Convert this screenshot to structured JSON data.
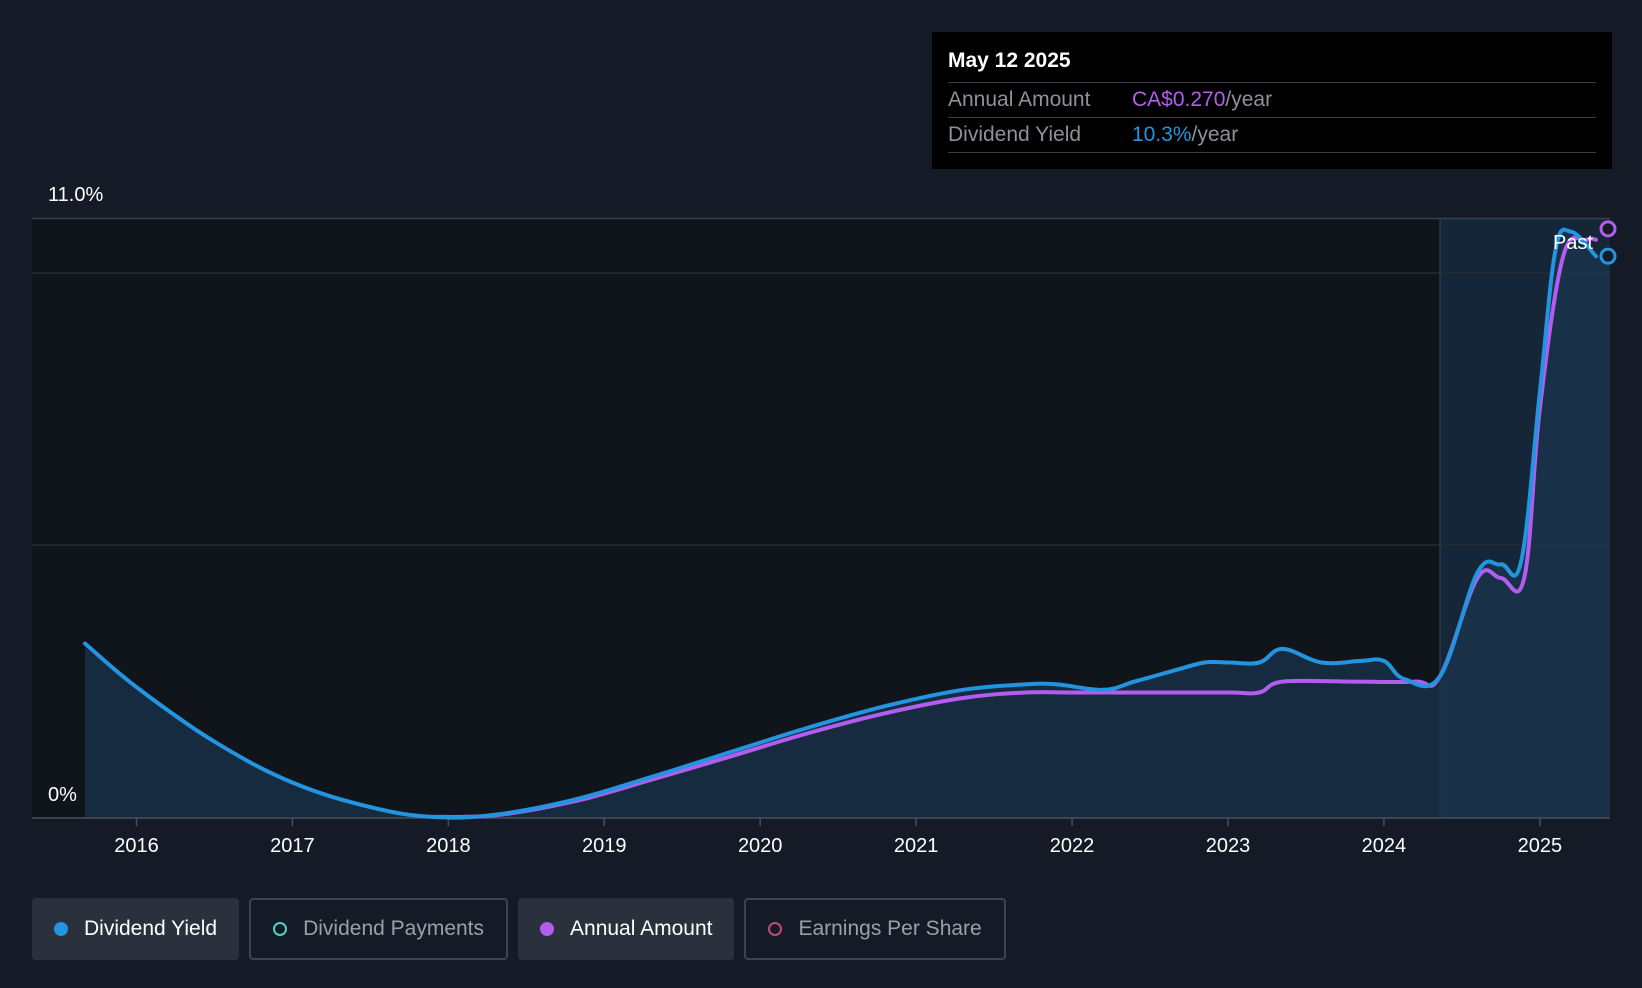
{
  "tooltip": {
    "date": "May 12 2025",
    "rows": [
      {
        "label": "Annual Amount",
        "value": "CA$0.270",
        "unit": "/year"
      },
      {
        "label": "Dividend Yield",
        "value": "10.3%",
        "unit": "/year"
      }
    ]
  },
  "legend": {
    "items": [
      {
        "label": "Dividend Yield",
        "color": "#2394df",
        "filled": true,
        "active": true
      },
      {
        "label": "Dividend Payments",
        "color": "#4fd1c5",
        "filled": false,
        "active": false
      },
      {
        "label": "Annual Amount",
        "color": "#b25dee",
        "filled": true,
        "active": true
      },
      {
        "label": "Earnings Per Share",
        "color": "#c0487a",
        "filled": false,
        "active": false
      }
    ]
  },
  "chart_data": {
    "type": "line",
    "y_top_label": "11.0%",
    "y_bottom_label": "0%",
    "past_label": "Past",
    "ylim": [
      0,
      11.0
    ],
    "xlim": [
      2015.33,
      2025.45
    ],
    "x_ticks": [
      "2016",
      "2017",
      "2018",
      "2019",
      "2020",
      "2021",
      "2022",
      "2023",
      "2024",
      "2025"
    ],
    "x_tick_values": [
      2016,
      2017,
      2018,
      2019,
      2020,
      2021,
      2022,
      2023,
      2024,
      2025
    ],
    "past_region_start": 2024.36,
    "colors": {
      "yield": "#2394df",
      "amount": "#b25dee",
      "area": "#1a3550"
    },
    "series": [
      {
        "name": "Dividend Yield",
        "x": [
          2015.67,
          2016.0,
          2016.5,
          2017.0,
          2017.5,
          2017.9,
          2018.3,
          2018.8,
          2019.3,
          2019.8,
          2020.3,
          2020.8,
          2021.3,
          2021.7,
          2021.9,
          2022.2,
          2022.4,
          2022.65,
          2022.85,
          2023.0,
          2023.2,
          2023.35,
          2023.6,
          2023.85,
          2024.0,
          2024.13,
          2024.36,
          2024.6,
          2024.75,
          2024.88,
          2025.0,
          2025.1,
          2025.2,
          2025.36
        ],
        "y": [
          3.2,
          2.4,
          1.4,
          0.65,
          0.2,
          0.02,
          0.06,
          0.33,
          0.75,
          1.2,
          1.65,
          2.05,
          2.35,
          2.45,
          2.45,
          2.35,
          2.5,
          2.7,
          2.85,
          2.85,
          2.85,
          3.1,
          2.85,
          2.88,
          2.88,
          2.55,
          2.6,
          4.5,
          4.65,
          4.7,
          7.8,
          10.4,
          10.75,
          10.3
        ]
      },
      {
        "name": "Annual Amount",
        "x": [
          2017.9,
          2018.3,
          2018.8,
          2019.3,
          2019.8,
          2020.3,
          2020.8,
          2021.3,
          2021.7,
          2022.0,
          2022.5,
          2023.0,
          2023.2,
          2023.35,
          2023.8,
          2024.2,
          2024.36,
          2024.6,
          2024.75,
          2024.9,
          2025.0,
          2025.15,
          2025.3,
          2025.36
        ],
        "y": [
          0.02,
          0.05,
          0.3,
          0.7,
          1.12,
          1.55,
          1.92,
          2.2,
          2.3,
          2.3,
          2.3,
          2.3,
          2.3,
          2.5,
          2.5,
          2.5,
          2.6,
          4.4,
          4.4,
          4.4,
          7.5,
          10.3,
          10.6,
          10.6
        ]
      }
    ]
  }
}
